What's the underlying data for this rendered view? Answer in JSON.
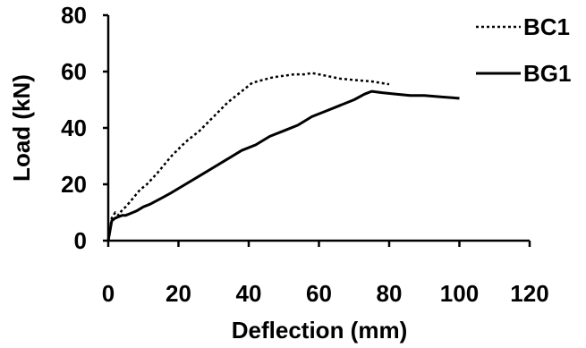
{
  "chart_data": {
    "type": "line",
    "xlabel": "Deflection (mm)",
    "ylabel": "Load (kN)",
    "xlim": [
      0,
      120
    ],
    "ylim": [
      0,
      80
    ],
    "x_ticks": [
      0,
      20,
      40,
      60,
      80,
      100,
      120
    ],
    "y_ticks": [
      0,
      20,
      40,
      60,
      80
    ],
    "grid": false,
    "legend_position": "top-right",
    "series": [
      {
        "name": "BC1",
        "style": "dotted",
        "color": "#000000",
        "points": [
          [
            0,
            0
          ],
          [
            1,
            8
          ],
          [
            2,
            10
          ],
          [
            3,
            9
          ],
          [
            4,
            11
          ],
          [
            5,
            12
          ],
          [
            7,
            15
          ],
          [
            9,
            18
          ],
          [
            11,
            20
          ],
          [
            14,
            24
          ],
          [
            18,
            30
          ],
          [
            22,
            35
          ],
          [
            26,
            39
          ],
          [
            30,
            44
          ],
          [
            34,
            49
          ],
          [
            38,
            53
          ],
          [
            41,
            56
          ],
          [
            44,
            57
          ],
          [
            47,
            58
          ],
          [
            50,
            58.5
          ],
          [
            53,
            59
          ],
          [
            56,
            59
          ],
          [
            58,
            59.5
          ],
          [
            60,
            59
          ],
          [
            62,
            58.5
          ],
          [
            66,
            57.5
          ],
          [
            70,
            57
          ],
          [
            75,
            56.5
          ],
          [
            80,
            55.5
          ]
        ]
      },
      {
        "name": "BG1",
        "style": "solid",
        "color": "#000000",
        "points": [
          [
            0,
            0
          ],
          [
            1,
            7
          ],
          [
            2,
            8
          ],
          [
            3,
            8.5
          ],
          [
            4,
            9
          ],
          [
            5,
            9
          ],
          [
            6,
            9.5
          ],
          [
            8,
            10.5
          ],
          [
            10,
            12
          ],
          [
            12,
            13
          ],
          [
            15,
            15
          ],
          [
            18,
            17
          ],
          [
            22,
            20
          ],
          [
            26,
            23
          ],
          [
            30,
            26
          ],
          [
            34,
            29
          ],
          [
            38,
            32
          ],
          [
            42,
            34
          ],
          [
            46,
            37
          ],
          [
            50,
            39
          ],
          [
            54,
            41
          ],
          [
            58,
            44
          ],
          [
            62,
            46
          ],
          [
            66,
            48
          ],
          [
            70,
            50
          ],
          [
            73,
            52
          ],
          [
            75,
            53
          ],
          [
            78,
            52.5
          ],
          [
            82,
            52
          ],
          [
            86,
            51.5
          ],
          [
            90,
            51.5
          ],
          [
            95,
            51
          ],
          [
            100,
            50.5
          ]
        ]
      }
    ]
  }
}
